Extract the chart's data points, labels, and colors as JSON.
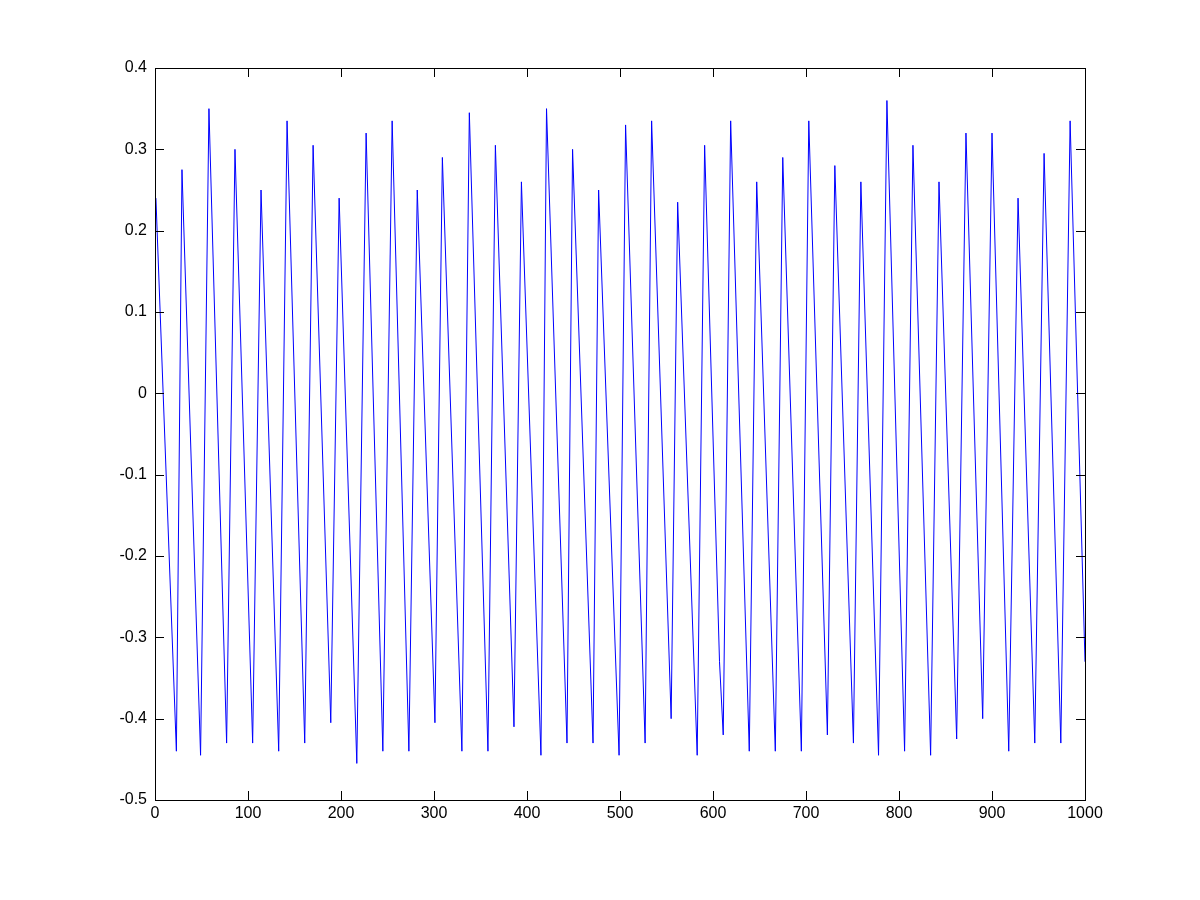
{
  "chart_data": {
    "type": "line",
    "x": [
      1,
      23,
      29,
      49,
      58,
      77,
      86,
      105,
      114,
      133,
      142,
      161,
      170,
      189,
      198,
      217,
      227,
      245,
      255,
      273,
      282,
      301,
      309,
      330,
      338,
      358,
      366,
      386,
      394,
      415,
      421,
      443,
      449,
      471,
      477,
      499,
      506,
      527,
      534,
      555,
      562,
      583,
      591,
      607,
      611,
      619,
      639,
      647,
      667,
      675,
      695,
      703,
      723,
      731,
      751,
      759,
      778,
      787,
      806,
      815,
      834,
      843,
      862,
      872,
      890,
      900,
      918,
      928,
      946,
      956,
      974,
      984,
      1000
    ],
    "series": [
      {
        "color": "#0000ff",
        "values": [
          0.24,
          -0.44,
          0.275,
          -0.445,
          0.35,
          -0.43,
          0.3,
          -0.43,
          0.25,
          -0.44,
          0.335,
          -0.43,
          0.305,
          -0.405,
          0.24,
          -0.455,
          0.32,
          -0.44,
          0.335,
          -0.44,
          0.25,
          -0.405,
          0.29,
          -0.44,
          0.345,
          -0.44,
          0.305,
          -0.41,
          0.26,
          -0.445,
          0.35,
          -0.43,
          0.3,
          -0.43,
          0.25,
          -0.445,
          0.33,
          -0.43,
          0.335,
          -0.4,
          0.235,
          -0.445,
          0.305,
          -0.33,
          -0.42,
          0.335,
          -0.44,
          0.26,
          -0.44,
          0.29,
          -0.44,
          0.335,
          -0.42,
          0.28,
          -0.43,
          0.26,
          -0.445,
          0.36,
          -0.44,
          0.305,
          -0.445,
          0.26,
          -0.425,
          0.32,
          -0.4,
          0.32,
          -0.44,
          0.24,
          -0.43,
          0.295,
          -0.43,
          0.335,
          -0.33
        ]
      }
    ],
    "xlim": [
      0,
      1000
    ],
    "xticks": [
      0,
      100,
      200,
      300,
      400,
      500,
      600,
      700,
      800,
      900,
      1000
    ],
    "ylim": [
      -0.5,
      0.4
    ],
    "yticks": [
      -0.5,
      -0.4,
      -0.3,
      -0.2,
      -0.1,
      0,
      0.1,
      0.2,
      0.3,
      0.4
    ],
    "legend": false,
    "marker": "none",
    "line_style": "solid"
  }
}
